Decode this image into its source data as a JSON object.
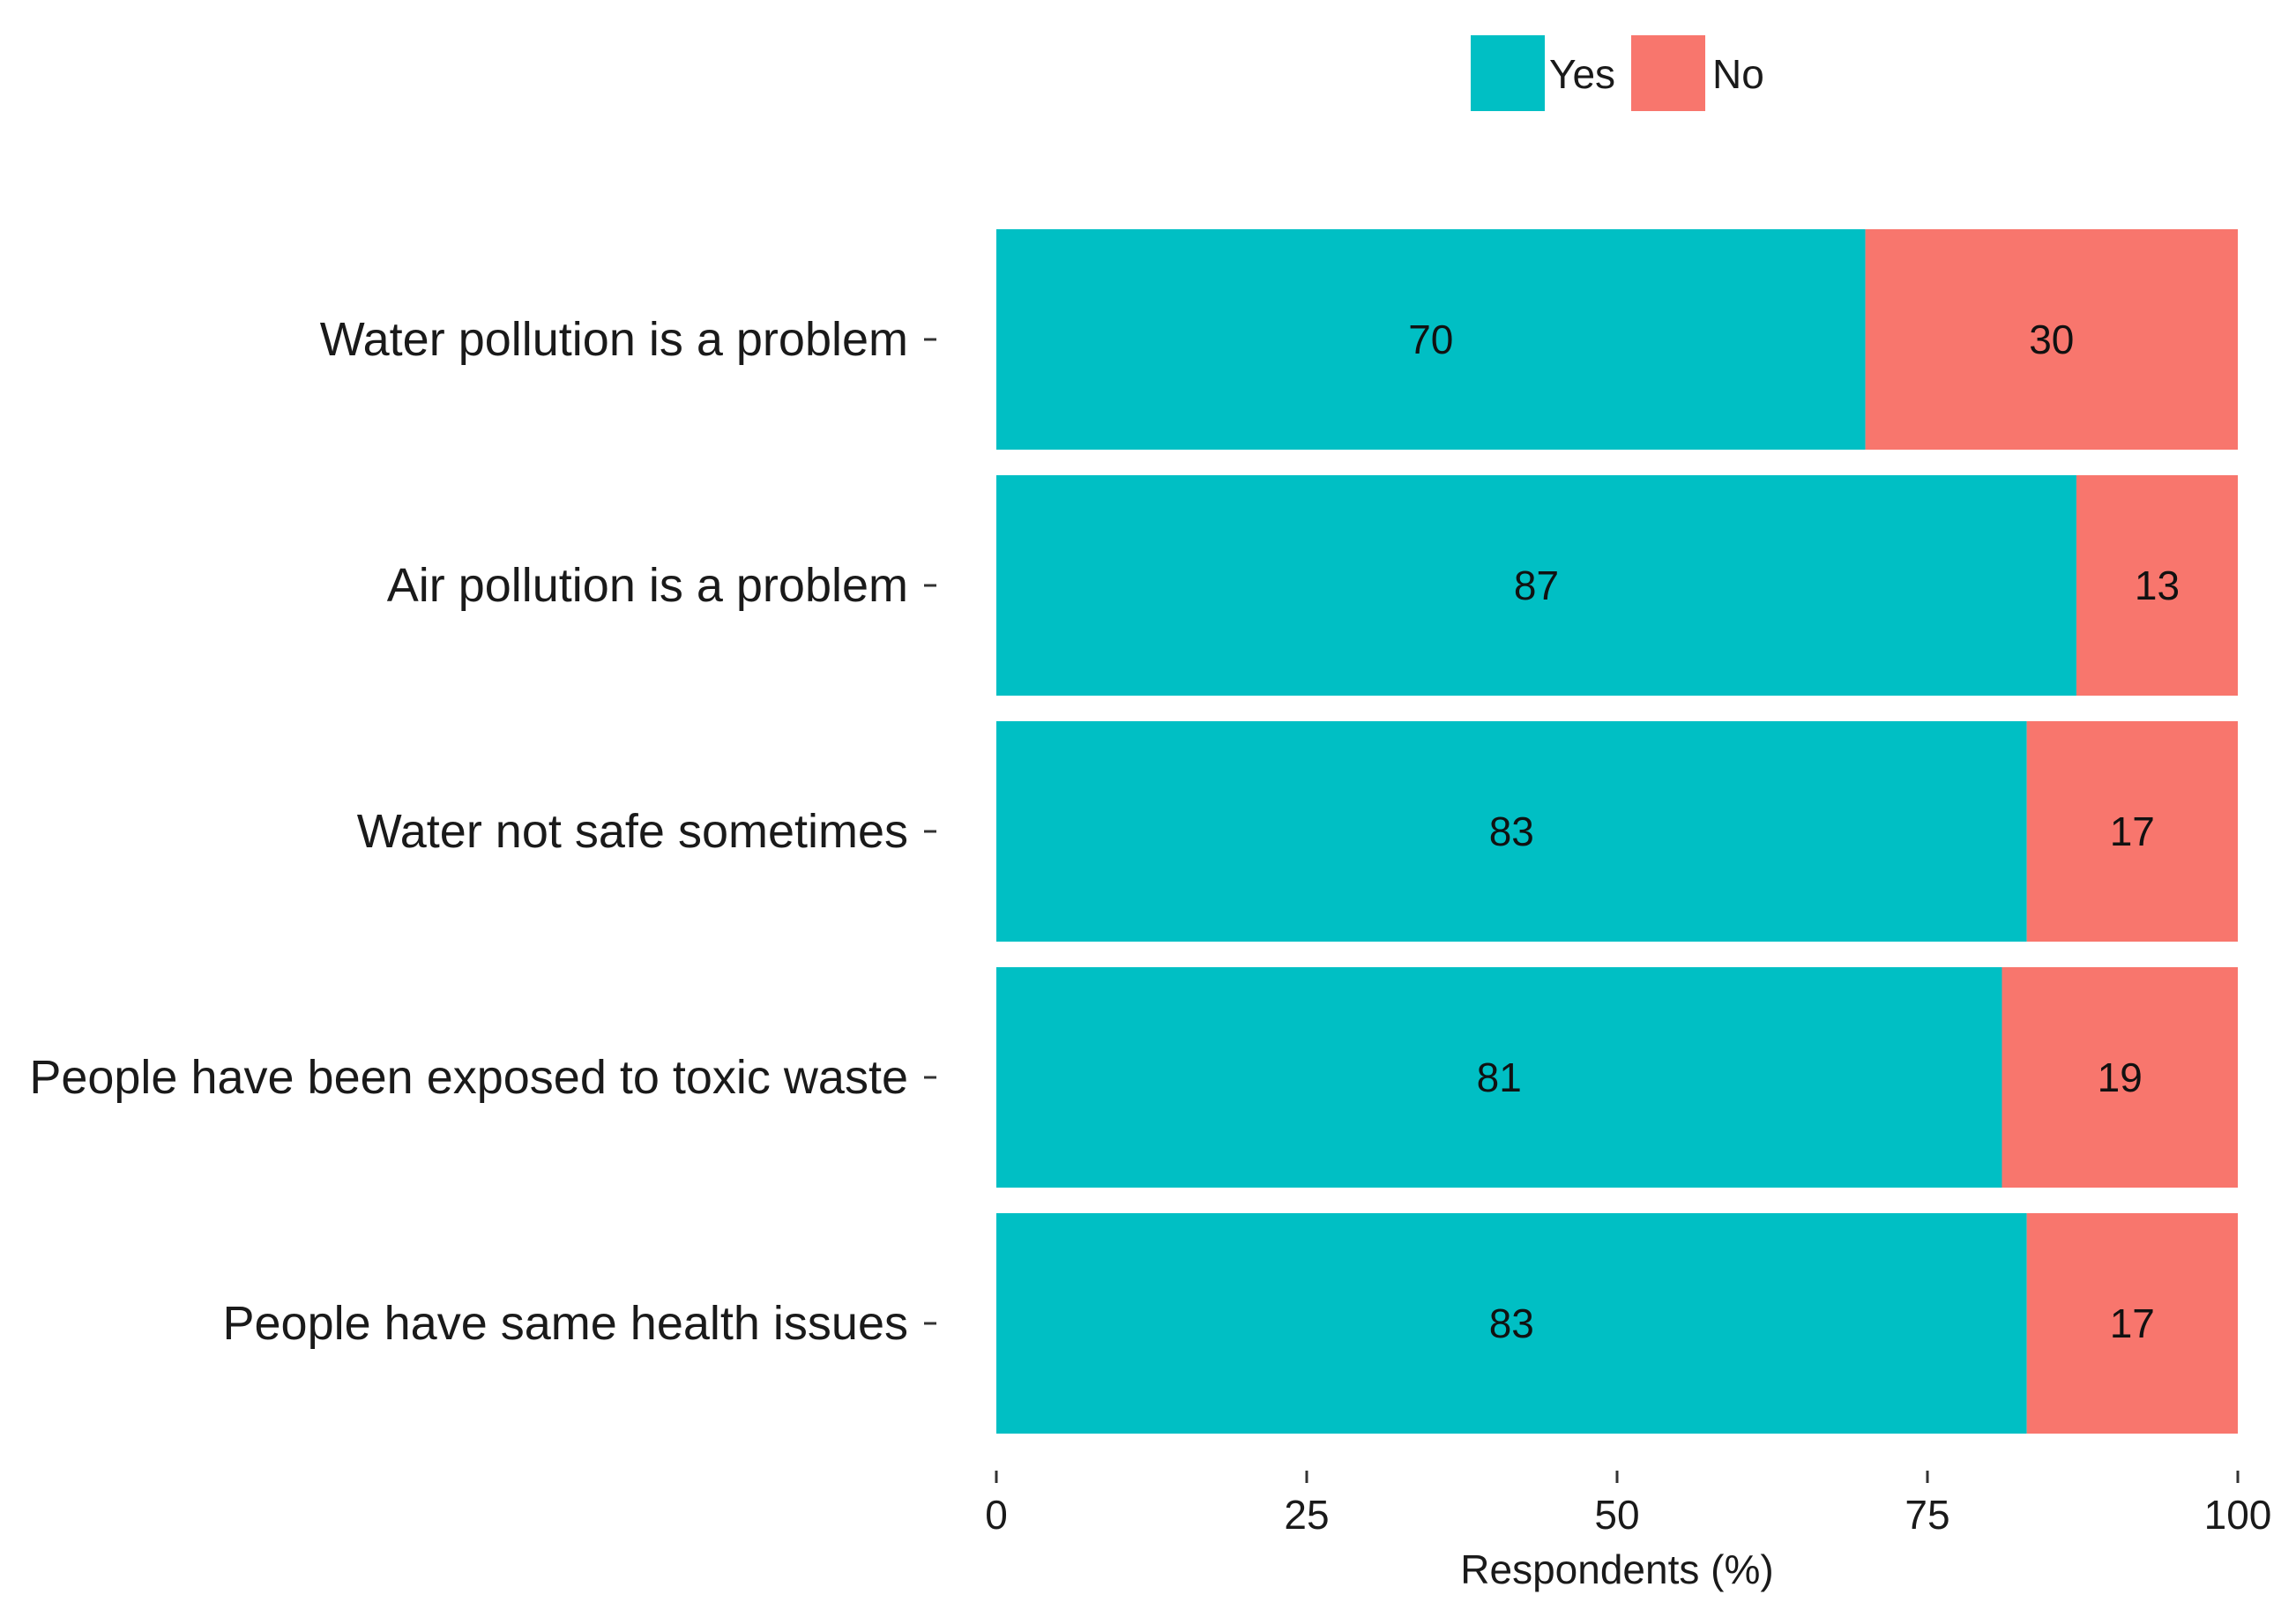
{
  "chart_data": {
    "type": "bar",
    "orientation": "horizontal",
    "stacked": true,
    "title": "",
    "xlabel": "Respondents (%)",
    "ylabel": "",
    "xlim": [
      0,
      100
    ],
    "xticks": [
      0,
      25,
      50,
      75,
      100
    ],
    "grid": false,
    "legend_position": "top",
    "categories": [
      "Water pollution is a problem",
      "Air pollution is a problem",
      "Water not safe sometimes",
      "People have been exposed to toxic waste",
      "People have same health issues"
    ],
    "series": [
      {
        "name": "Yes",
        "color": "#00BFC4",
        "values": [
          70,
          87,
          83,
          81,
          83
        ]
      },
      {
        "name": "No",
        "color": "#F8766D",
        "values": [
          30,
          13,
          17,
          19,
          17
        ]
      }
    ]
  }
}
